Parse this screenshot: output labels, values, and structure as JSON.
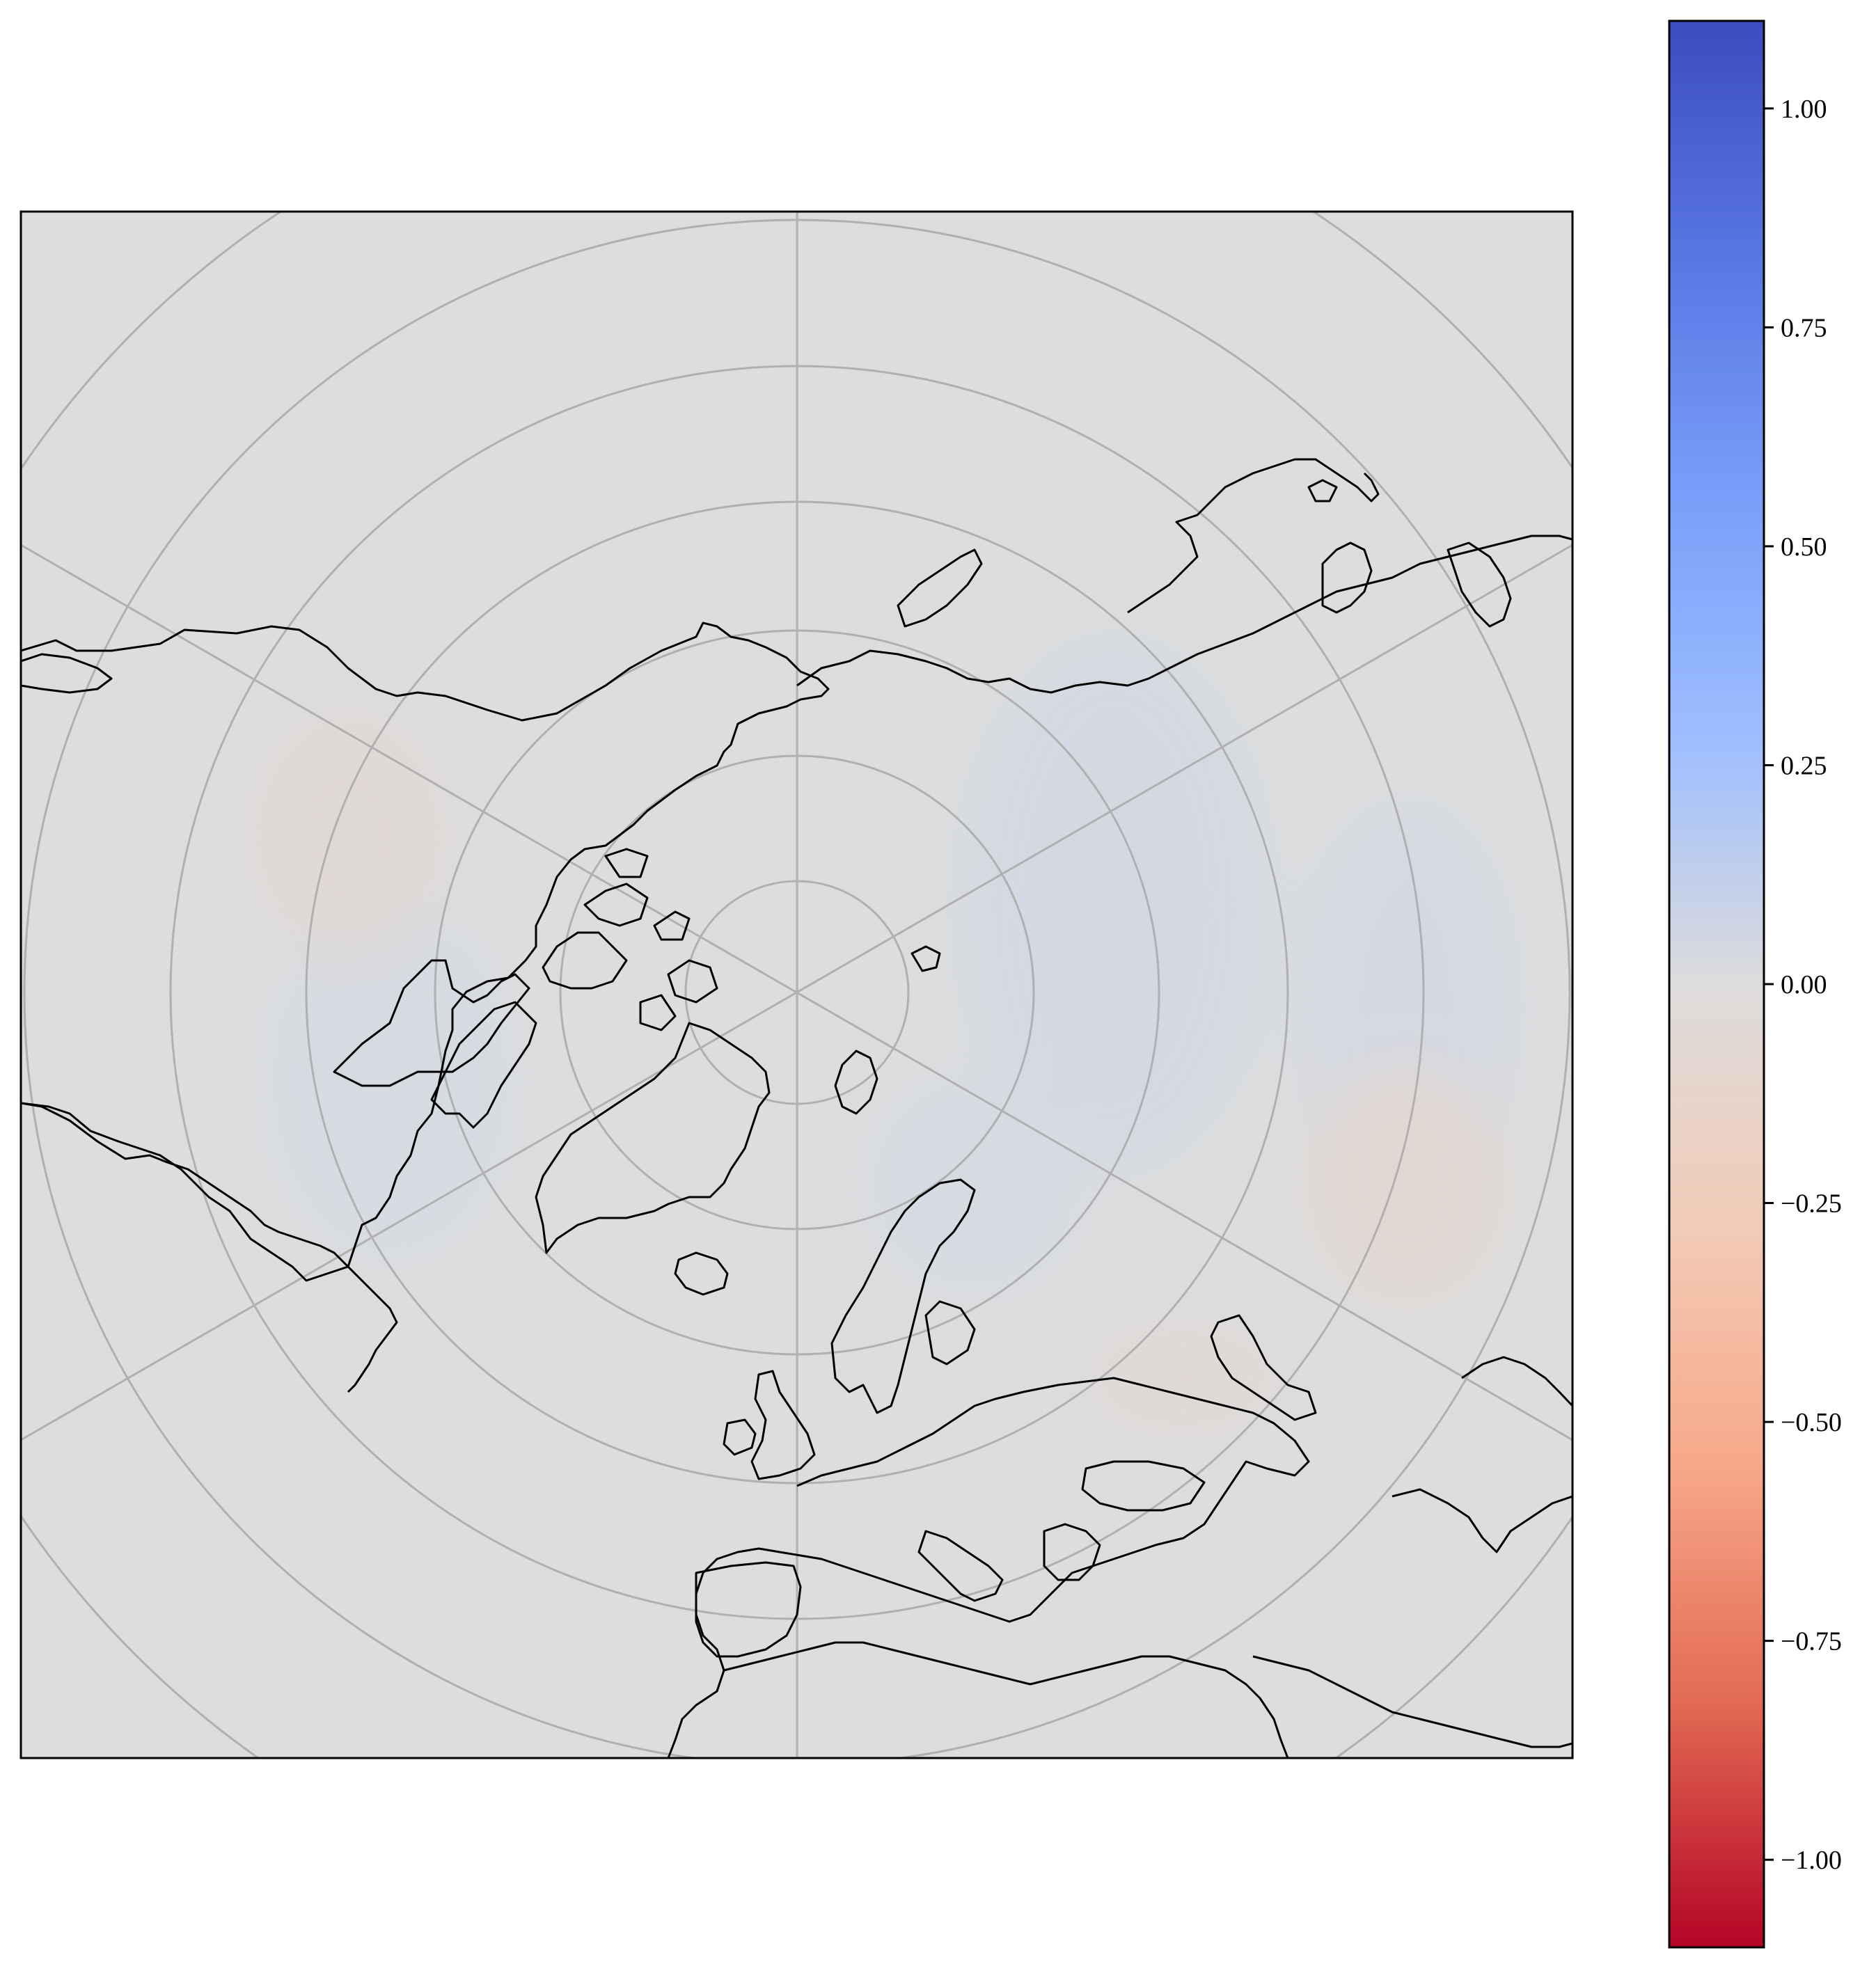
{
  "map": {
    "projection": "north-polar-stereographic",
    "background_color": "#dcdddd",
    "gridline_color": "#b0b0b0",
    "coastline_color": "#000000",
    "latitude_circles": 7,
    "meridian_spokes": 6,
    "anomaly_patches": [
      {
        "area": "western-siberia",
        "value": 0.05
      },
      {
        "area": "central-siberia",
        "value": 0.08
      },
      {
        "area": "east-siberia",
        "value": 0.04
      },
      {
        "area": "kazakhstan",
        "value": -0.12
      },
      {
        "area": "north-canada",
        "value": 0.05
      },
      {
        "area": "alaska",
        "value": -0.04
      },
      {
        "area": "scandinavia",
        "value": 0.08
      },
      {
        "area": "eastern-europe",
        "value": -0.1
      },
      {
        "area": "west-russia",
        "value": 0.06
      }
    ]
  },
  "colorbar": {
    "colormap": "coolwarm-reversed",
    "vmin": -1.1,
    "vmax": 1.1,
    "top_color": "#3b4cc0",
    "mid_color": "#dddcdc",
    "bottom_color": "#b40426",
    "ticks": [
      {
        "value": 1.0,
        "label": "1.00"
      },
      {
        "value": 0.75,
        "label": "0.75"
      },
      {
        "value": 0.5,
        "label": "0.50"
      },
      {
        "value": 0.25,
        "label": "0.25"
      },
      {
        "value": 0.0,
        "label": "0.00"
      },
      {
        "value": -0.25,
        "label": "−0.25"
      },
      {
        "value": -0.5,
        "label": "−0.50"
      },
      {
        "value": -0.75,
        "label": "−0.75"
      },
      {
        "value": -1.0,
        "label": "−1.00"
      }
    ]
  }
}
